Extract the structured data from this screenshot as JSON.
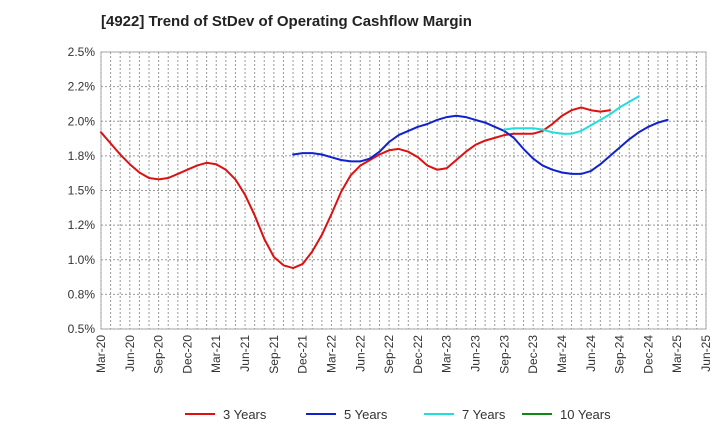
{
  "chart_data": {
    "type": "line",
    "title": "[4922]  Trend of StDev of Operating Cashflow Margin",
    "xlabel": "",
    "ylabel": "",
    "ylim": [
      0.5,
      2.5
    ],
    "y_ticks": [
      "0.5%",
      "0.8%",
      "1.0%",
      "1.2%",
      "1.5%",
      "1.8%",
      "2.0%",
      "2.2%",
      "2.5%"
    ],
    "y_tick_values": [
      0.5,
      0.75,
      1.0,
      1.25,
      1.5,
      1.75,
      2.0,
      2.25,
      2.5
    ],
    "x_ticks": [
      "Mar-20",
      "Jun-20",
      "Sep-20",
      "Dec-20",
      "Mar-21",
      "Jun-21",
      "Sep-21",
      "Dec-21",
      "Mar-22",
      "Jun-22",
      "Sep-22",
      "Dec-22",
      "Mar-23",
      "Jun-23",
      "Sep-23",
      "Dec-23",
      "Mar-24",
      "Jun-24",
      "Sep-24",
      "Dec-24",
      "Mar-25",
      "Jun-25"
    ],
    "grid": true,
    "legend_position": "bottom",
    "series": [
      {
        "name": "3 Years",
        "color": "#dd1111",
        "start_index": 0,
        "values": [
          1.92,
          1.84,
          1.76,
          1.69,
          1.63,
          1.59,
          1.58,
          1.59,
          1.62,
          1.65,
          1.68,
          1.7,
          1.69,
          1.65,
          1.58,
          1.47,
          1.32,
          1.15,
          1.02,
          0.96,
          0.94,
          0.97,
          1.06,
          1.18,
          1.33,
          1.49,
          1.61,
          1.68,
          1.72,
          1.76,
          1.79,
          1.8,
          1.78,
          1.74,
          1.68,
          1.65,
          1.66,
          1.72,
          1.78,
          1.83,
          1.86,
          1.88,
          1.9,
          1.91,
          1.91,
          1.91,
          1.93,
          1.98,
          2.04,
          2.08,
          2.1,
          2.08,
          2.07,
          2.08
        ]
      },
      {
        "name": "5 Years",
        "color": "#1122cc",
        "start_index": 20,
        "values": [
          1.76,
          1.77,
          1.77,
          1.76,
          1.74,
          1.72,
          1.71,
          1.71,
          1.73,
          1.78,
          1.85,
          1.9,
          1.93,
          1.96,
          1.98,
          2.01,
          2.03,
          2.04,
          2.03,
          2.01,
          1.99,
          1.96,
          1.93,
          1.88,
          1.8,
          1.73,
          1.68,
          1.65,
          1.63,
          1.62,
          1.62,
          1.64,
          1.69,
          1.75,
          1.81,
          1.87,
          1.92,
          1.96,
          1.99,
          2.01
        ]
      },
      {
        "name": "7 Years",
        "color": "#22dddd",
        "start_index": 42,
        "values": [
          1.94,
          1.95,
          1.95,
          1.95,
          1.94,
          1.92,
          1.91,
          1.91,
          1.93,
          1.97,
          2.01,
          2.05,
          2.1,
          2.14,
          2.18
        ]
      },
      {
        "name": "10 Years",
        "color": "#118811",
        "start_index": 0,
        "values": []
      }
    ]
  }
}
